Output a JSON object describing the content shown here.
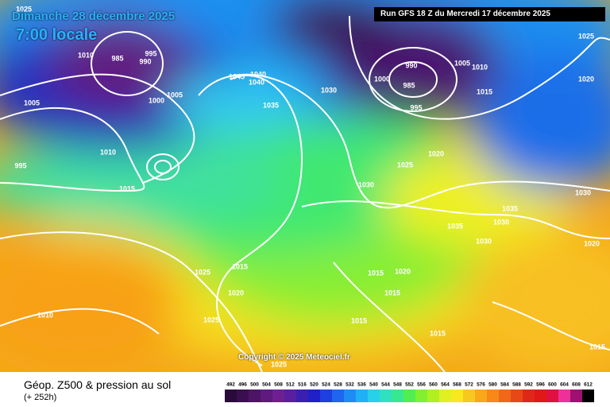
{
  "header": {
    "date": "Dimanche 28 décembre 2025",
    "time": "7:00 locale",
    "run": "Run GFS 18 Z du Mercredi 17 décembre 2025"
  },
  "footer": {
    "title": "Géop. Z500 & pression au sol",
    "lead": "(+ 252h)",
    "copyright": "Copyright © 2025 Meteociel.fr"
  },
  "isobar_labels": [
    "1025",
    "1010",
    "985",
    "990",
    "995",
    "1005",
    "1000",
    "1005",
    "1010",
    "995",
    "1015",
    "1045",
    "1040",
    "1040",
    "1035",
    "1030",
    "990",
    "985",
    "995",
    "1000",
    "1005",
    "1010",
    "1015",
    "1025",
    "1020",
    "1020",
    "1025",
    "1030",
    "1030",
    "1035",
    "1035",
    "1030",
    "1030",
    "1020",
    "1025",
    "1015",
    "1020",
    "1010",
    "1025",
    "1015",
    "1020",
    "1015",
    "1015",
    "1015",
    "1015",
    "1025"
  ],
  "color_scale": {
    "labels": [
      492,
      496,
      500,
      504,
      508,
      512,
      516,
      520,
      524,
      528,
      532,
      536,
      540,
      544,
      548,
      552,
      556,
      560,
      564,
      568,
      572,
      576,
      580,
      584,
      588,
      592,
      596,
      600,
      604,
      608,
      612
    ],
    "colors": [
      "#2a0a3a",
      "#3b0f4f",
      "#4d1466",
      "#5e1a7e",
      "#6e2090",
      "#5a1fa0",
      "#3a20b0",
      "#2020c8",
      "#1e40e0",
      "#1e66ee",
      "#1e8cf5",
      "#20b0f5",
      "#28d0e8",
      "#30e0c0",
      "#38e890",
      "#50ee50",
      "#80f030",
      "#b0f020",
      "#e0f020",
      "#f8e820",
      "#f8c820",
      "#f8a818",
      "#f88818",
      "#f06818",
      "#e84818",
      "#e02818",
      "#e01818",
      "#e01040",
      "#f0309a",
      "#a01070",
      "#000000"
    ]
  }
}
